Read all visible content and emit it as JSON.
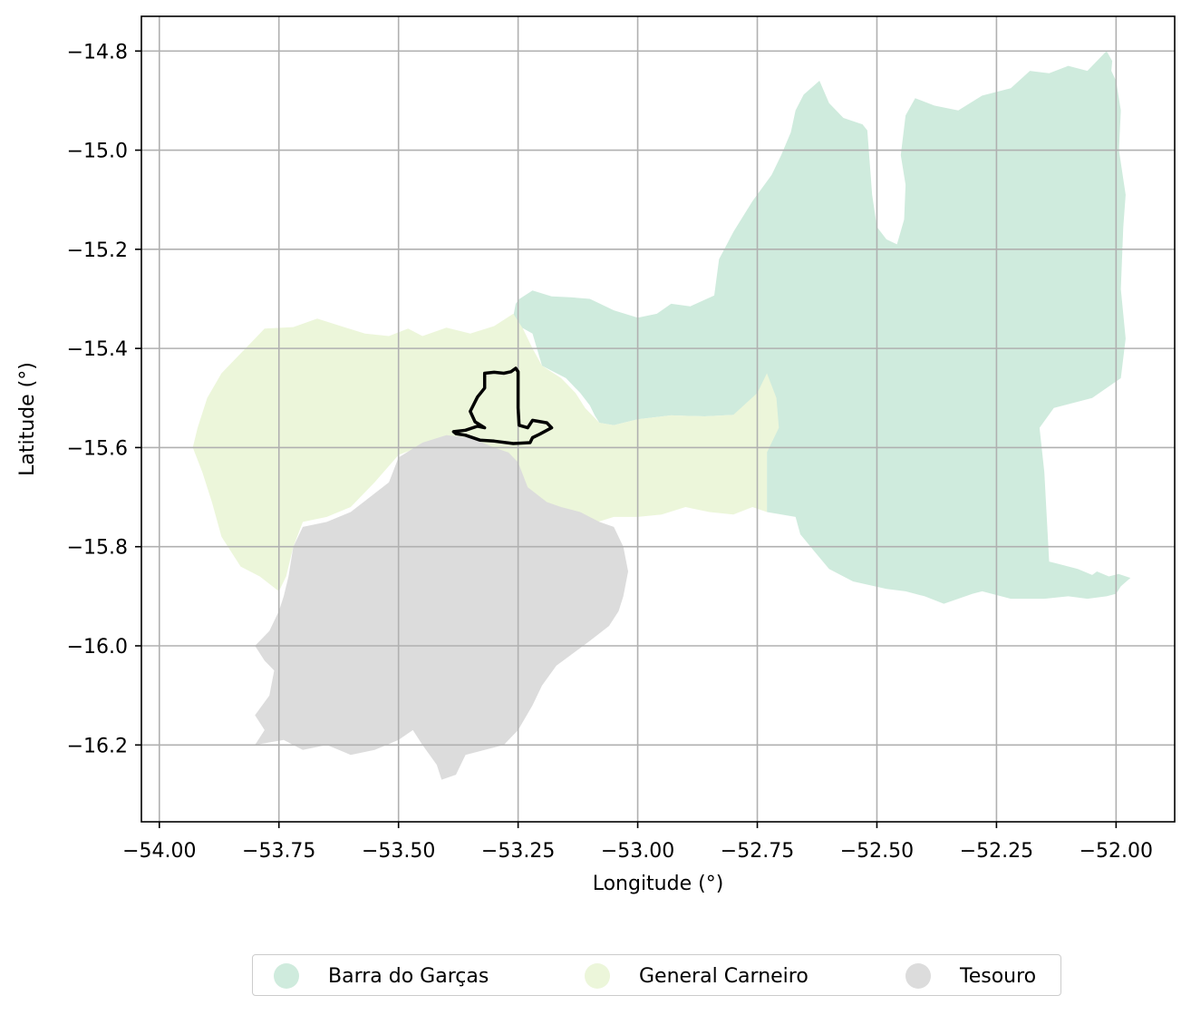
{
  "map": {
    "xlabel": "Longitude (°)",
    "ylabel": "Latitude (°)",
    "xlim": [
      -54.0375,
      -51.8775
    ],
    "ylim": [
      -16.355,
      -14.73
    ],
    "x_ticks": [
      -54.0,
      -53.75,
      -53.5,
      -53.25,
      -53.0,
      -52.75,
      -52.5,
      -52.25,
      -52.0
    ],
    "x_tick_labels": [
      "−54.00",
      "−53.75",
      "−53.50",
      "−53.25",
      "−53.00",
      "−52.75",
      "−52.50",
      "−52.25",
      "−52.00"
    ],
    "y_ticks": [
      -14.8,
      -15.0,
      -15.2,
      -15.4,
      -15.6,
      -15.8,
      -16.0,
      -16.2
    ],
    "y_tick_labels": [
      "−14.8",
      "−15.0",
      "−15.2",
      "−15.4",
      "−15.6",
      "−15.8",
      "−16.0",
      "−16.2"
    ],
    "grid": true,
    "legend_position": "bottom-center",
    "regions": [
      {
        "name": "Barra do Garças",
        "color": "#cfebdd",
        "polygon": [
          [
            -53.247,
            -15.3
          ],
          [
            -53.22,
            -15.283
          ],
          [
            -53.18,
            -15.295
          ],
          [
            -53.14,
            -15.297
          ],
          [
            -53.1,
            -15.3
          ],
          [
            -53.05,
            -15.323
          ],
          [
            -53.0,
            -15.338
          ],
          [
            -52.96,
            -15.33
          ],
          [
            -52.93,
            -15.31
          ],
          [
            -52.89,
            -15.315
          ],
          [
            -52.84,
            -15.293
          ],
          [
            -52.83,
            -15.22
          ],
          [
            -52.8,
            -15.165
          ],
          [
            -52.76,
            -15.103
          ],
          [
            -52.72,
            -15.05
          ],
          [
            -52.7,
            -15.01
          ],
          [
            -52.68,
            -14.964
          ],
          [
            -52.67,
            -14.92
          ],
          [
            -52.653,
            -14.888
          ],
          [
            -52.62,
            -14.86
          ],
          [
            -52.6,
            -14.905
          ],
          [
            -52.57,
            -14.935
          ],
          [
            -52.53,
            -14.948
          ],
          [
            -52.52,
            -14.96
          ],
          [
            -52.51,
            -15.09
          ],
          [
            -52.5,
            -15.155
          ],
          [
            -52.48,
            -15.18
          ],
          [
            -52.458,
            -15.19
          ],
          [
            -52.443,
            -15.14
          ],
          [
            -52.44,
            -15.07
          ],
          [
            -52.45,
            -15.01
          ],
          [
            -52.44,
            -14.93
          ],
          [
            -52.42,
            -14.895
          ],
          [
            -52.38,
            -14.91
          ],
          [
            -52.33,
            -14.92
          ],
          [
            -52.28,
            -14.89
          ],
          [
            -52.22,
            -14.875
          ],
          [
            -52.18,
            -14.84
          ],
          [
            -52.14,
            -14.845
          ],
          [
            -52.1,
            -14.83
          ],
          [
            -52.06,
            -14.84
          ],
          [
            -52.02,
            -14.8
          ],
          [
            -52.008,
            -14.82
          ],
          [
            -52.01,
            -14.84
          ],
          [
            -52.0,
            -14.86
          ],
          [
            -51.99,
            -14.92
          ],
          [
            -51.994,
            -15.0
          ],
          [
            -51.98,
            -15.09
          ],
          [
            -51.985,
            -15.155
          ],
          [
            -51.99,
            -15.28
          ],
          [
            -51.98,
            -15.38
          ],
          [
            -51.99,
            -15.46
          ],
          [
            -52.05,
            -15.5
          ],
          [
            -52.13,
            -15.52
          ],
          [
            -52.16,
            -15.56
          ],
          [
            -52.15,
            -15.65
          ],
          [
            -52.14,
            -15.83
          ],
          [
            -52.12,
            -15.835
          ],
          [
            -52.08,
            -15.845
          ],
          [
            -52.05,
            -15.857
          ],
          [
            -52.04,
            -15.85
          ],
          [
            -52.015,
            -15.86
          ],
          [
            -51.995,
            -15.855
          ],
          [
            -51.97,
            -15.863
          ],
          [
            -51.99,
            -15.88
          ],
          [
            -52.0,
            -15.895
          ],
          [
            -52.02,
            -15.9
          ],
          [
            -52.06,
            -15.905
          ],
          [
            -52.1,
            -15.9
          ],
          [
            -52.15,
            -15.905
          ],
          [
            -52.22,
            -15.905
          ],
          [
            -52.28,
            -15.89
          ],
          [
            -52.3,
            -15.895
          ],
          [
            -52.36,
            -15.915
          ],
          [
            -52.4,
            -15.9
          ],
          [
            -52.44,
            -15.89
          ],
          [
            -52.48,
            -15.885
          ],
          [
            -52.55,
            -15.87
          ],
          [
            -52.6,
            -15.845
          ],
          [
            -52.63,
            -15.81
          ],
          [
            -52.66,
            -15.775
          ],
          [
            -52.67,
            -15.74
          ],
          [
            -52.73,
            -15.73
          ],
          [
            -52.73,
            -15.61
          ],
          [
            -52.75,
            -15.563
          ],
          [
            -52.8,
            -15.534
          ],
          [
            -52.86,
            -15.537
          ],
          [
            -52.93,
            -15.535
          ],
          [
            -53.0,
            -15.543
          ],
          [
            -53.03,
            -15.55
          ],
          [
            -53.05,
            -15.555
          ],
          [
            -53.08,
            -15.55
          ],
          [
            -53.09,
            -15.535
          ],
          [
            -53.1,
            -15.515
          ],
          [
            -53.12,
            -15.49
          ],
          [
            -53.15,
            -15.46
          ],
          [
            -53.2,
            -15.435
          ],
          [
            -53.22,
            -15.37
          ],
          [
            -53.248,
            -15.355
          ],
          [
            -53.26,
            -15.335
          ],
          [
            -53.255,
            -15.31
          ]
        ]
      },
      {
        "name": "General Carneiro",
        "color": "#ecf6da",
        "polygon": [
          [
            -53.93,
            -15.6
          ],
          [
            -53.92,
            -15.56
          ],
          [
            -53.9,
            -15.5
          ],
          [
            -53.87,
            -15.45
          ],
          [
            -53.84,
            -15.42
          ],
          [
            -53.81,
            -15.39
          ],
          [
            -53.78,
            -15.36
          ],
          [
            -53.72,
            -15.357
          ],
          [
            -53.67,
            -15.34
          ],
          [
            -53.61,
            -15.358
          ],
          [
            -53.57,
            -15.37
          ],
          [
            -53.52,
            -15.375
          ],
          [
            -53.48,
            -15.36
          ],
          [
            -53.45,
            -15.375
          ],
          [
            -53.4,
            -15.358
          ],
          [
            -53.35,
            -15.37
          ],
          [
            -53.3,
            -15.355
          ],
          [
            -53.26,
            -15.33
          ],
          [
            -53.24,
            -15.36
          ],
          [
            -53.22,
            -15.4
          ],
          [
            -53.2,
            -15.435
          ],
          [
            -53.16,
            -15.46
          ],
          [
            -53.13,
            -15.49
          ],
          [
            -53.11,
            -15.52
          ],
          [
            -53.08,
            -15.55
          ],
          [
            -53.05,
            -15.555
          ],
          [
            -53.0,
            -15.543
          ],
          [
            -52.93,
            -15.535
          ],
          [
            -52.86,
            -15.537
          ],
          [
            -52.8,
            -15.534
          ],
          [
            -52.75,
            -15.49
          ],
          [
            -52.73,
            -15.45
          ],
          [
            -52.71,
            -15.5
          ],
          [
            -52.705,
            -15.56
          ],
          [
            -52.73,
            -15.61
          ],
          [
            -52.73,
            -15.73
          ],
          [
            -52.76,
            -15.72
          ],
          [
            -52.8,
            -15.735
          ],
          [
            -52.85,
            -15.73
          ],
          [
            -52.9,
            -15.72
          ],
          [
            -52.95,
            -15.735
          ],
          [
            -53.0,
            -15.74
          ],
          [
            -53.05,
            -15.74
          ],
          [
            -53.1,
            -15.755
          ],
          [
            -53.14,
            -15.76
          ],
          [
            -53.18,
            -15.74
          ],
          [
            -53.2,
            -15.725
          ],
          [
            -53.23,
            -15.7
          ],
          [
            -53.26,
            -15.66
          ],
          [
            -53.29,
            -15.62
          ],
          [
            -53.33,
            -15.605
          ],
          [
            -53.37,
            -15.6
          ],
          [
            -53.42,
            -15.585
          ],
          [
            -53.5,
            -15.615
          ],
          [
            -53.55,
            -15.67
          ],
          [
            -53.6,
            -15.72
          ],
          [
            -53.65,
            -15.74
          ],
          [
            -53.7,
            -15.75
          ],
          [
            -53.72,
            -15.8
          ],
          [
            -53.735,
            -15.86
          ],
          [
            -53.75,
            -15.89
          ],
          [
            -53.79,
            -15.86
          ],
          [
            -53.83,
            -15.84
          ],
          [
            -53.87,
            -15.78
          ],
          [
            -53.89,
            -15.71
          ],
          [
            -53.91,
            -15.65
          ]
        ]
      },
      {
        "name": "Tesouro",
        "color": "#dcdcdc",
        "polygon": [
          [
            -53.8,
            -16.0
          ],
          [
            -53.78,
            -16.03
          ],
          [
            -53.76,
            -16.05
          ],
          [
            -53.77,
            -16.1
          ],
          [
            -53.8,
            -16.14
          ],
          [
            -53.78,
            -16.17
          ],
          [
            -53.8,
            -16.2
          ],
          [
            -53.74,
            -16.19
          ],
          [
            -53.7,
            -16.21
          ],
          [
            -53.65,
            -16.2
          ],
          [
            -53.6,
            -16.22
          ],
          [
            -53.55,
            -16.21
          ],
          [
            -53.5,
            -16.19
          ],
          [
            -53.47,
            -16.17
          ],
          [
            -53.45,
            -16.2
          ],
          [
            -53.42,
            -16.24
          ],
          [
            -53.41,
            -16.27
          ],
          [
            -53.38,
            -16.26
          ],
          [
            -53.36,
            -16.22
          ],
          [
            -53.32,
            -16.21
          ],
          [
            -53.28,
            -16.2
          ],
          [
            -53.25,
            -16.17
          ],
          [
            -53.22,
            -16.12
          ],
          [
            -53.2,
            -16.08
          ],
          [
            -53.17,
            -16.04
          ],
          [
            -53.1,
            -15.99
          ],
          [
            -53.06,
            -15.96
          ],
          [
            -53.04,
            -15.93
          ],
          [
            -53.03,
            -15.9
          ],
          [
            -53.02,
            -15.85
          ],
          [
            -53.03,
            -15.8
          ],
          [
            -53.05,
            -15.76
          ],
          [
            -53.08,
            -15.75
          ],
          [
            -53.12,
            -15.73
          ],
          [
            -53.16,
            -15.72
          ],
          [
            -53.19,
            -15.71
          ],
          [
            -53.23,
            -15.68
          ],
          [
            -53.25,
            -15.63
          ],
          [
            -53.27,
            -15.61
          ],
          [
            -53.3,
            -15.6
          ],
          [
            -53.35,
            -15.58
          ],
          [
            -53.4,
            -15.575
          ],
          [
            -53.45,
            -15.59
          ],
          [
            -53.5,
            -15.62
          ],
          [
            -53.52,
            -15.67
          ],
          [
            -53.56,
            -15.7
          ],
          [
            -53.6,
            -15.73
          ],
          [
            -53.65,
            -15.75
          ],
          [
            -53.7,
            -15.76
          ],
          [
            -53.72,
            -15.8
          ],
          [
            -53.73,
            -15.86
          ],
          [
            -53.74,
            -15.9
          ],
          [
            -53.75,
            -15.93
          ],
          [
            -53.77,
            -15.97
          ]
        ]
      }
    ],
    "outline": {
      "color": "#000000",
      "polygon": [
        [
          -53.385,
          -15.568
        ],
        [
          -53.36,
          -15.565
        ],
        [
          -53.335,
          -15.557
        ],
        [
          -53.32,
          -15.56
        ],
        [
          -53.34,
          -15.548
        ],
        [
          -53.35,
          -15.527
        ],
        [
          -53.335,
          -15.498
        ],
        [
          -53.32,
          -15.48
        ],
        [
          -53.32,
          -15.45
        ],
        [
          -53.3,
          -15.448
        ],
        [
          -53.28,
          -15.45
        ],
        [
          -53.265,
          -15.447
        ],
        [
          -53.255,
          -15.44
        ],
        [
          -53.25,
          -15.447
        ],
        [
          -53.25,
          -15.52
        ],
        [
          -53.248,
          -15.555
        ],
        [
          -53.23,
          -15.56
        ],
        [
          -53.22,
          -15.545
        ],
        [
          -53.19,
          -15.55
        ],
        [
          -53.18,
          -15.56
        ],
        [
          -53.205,
          -15.573
        ],
        [
          -53.22,
          -15.58
        ],
        [
          -53.225,
          -15.59
        ],
        [
          -53.26,
          -15.592
        ],
        [
          -53.3,
          -15.587
        ],
        [
          -53.33,
          -15.585
        ],
        [
          -53.36,
          -15.575
        ],
        [
          -53.38,
          -15.572
        ]
      ]
    }
  },
  "legend": {
    "items": [
      {
        "label": "Barra do Garças",
        "color": "#cfebdd"
      },
      {
        "label": "General Carneiro",
        "color": "#ecf6da"
      },
      {
        "label": "Tesouro",
        "color": "#dcdcdc"
      }
    ]
  }
}
